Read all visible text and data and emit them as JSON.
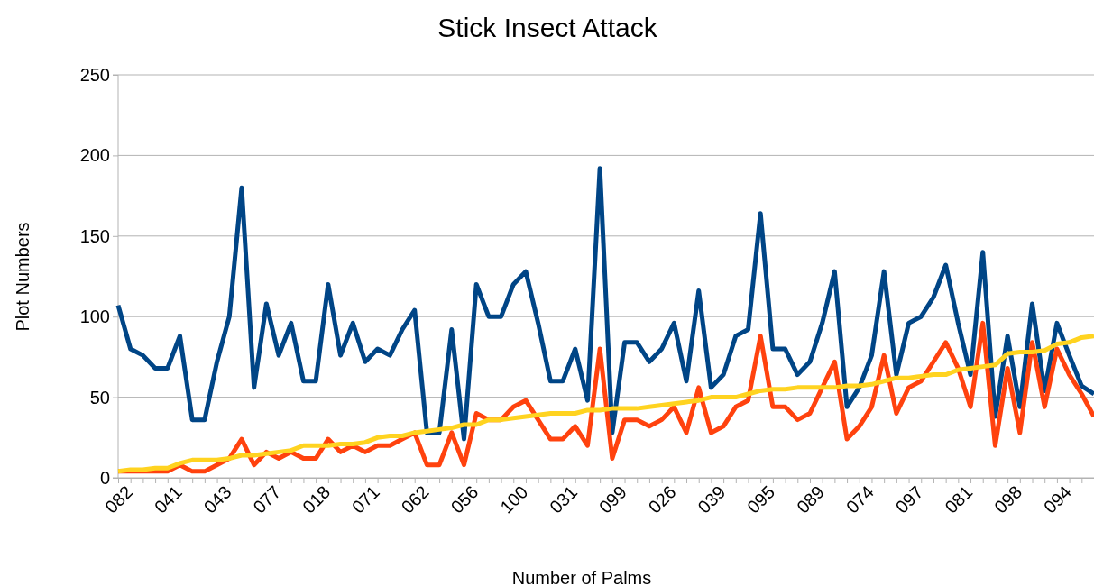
{
  "chart_data": {
    "type": "line",
    "title": "Stick Insect Attack",
    "xlabel": "Number of Palms",
    "ylabel": "Plot Numbers",
    "categories": [
      "082",
      null,
      null,
      null,
      "041",
      null,
      null,
      null,
      "043",
      null,
      null,
      null,
      "077",
      null,
      null,
      null,
      "018",
      null,
      null,
      null,
      "071",
      null,
      null,
      null,
      "062",
      null,
      null,
      null,
      "056",
      null,
      null,
      null,
      "100",
      null,
      null,
      null,
      "031",
      null,
      null,
      null,
      "099",
      null,
      null,
      null,
      "026",
      null,
      null,
      null,
      "039",
      null,
      null,
      null,
      "095",
      null,
      null,
      null,
      "089",
      null,
      null,
      null,
      "074",
      null,
      null,
      null,
      "097",
      null,
      null,
      null,
      "081",
      null,
      null,
      null,
      "098",
      null,
      null,
      null,
      "094",
      null,
      null,
      null
    ],
    "series": [
      {
        "color": "#004586",
        "values": [
          107,
          80,
          76,
          68,
          68,
          88,
          36,
          36,
          72,
          100,
          180,
          56,
          108,
          76,
          96,
          60,
          60,
          120,
          76,
          96,
          72,
          80,
          76,
          92,
          104,
          28,
          28,
          92,
          24,
          120,
          100,
          100,
          120,
          128,
          96,
          60,
          60,
          80,
          48,
          192,
          28,
          84,
          84,
          72,
          80,
          96,
          60,
          116,
          56,
          64,
          88,
          92,
          164,
          80,
          80,
          64,
          72,
          96,
          128,
          44,
          56,
          76,
          128,
          64,
          96,
          100,
          112,
          132,
          96,
          64,
          140,
          38,
          88,
          44,
          108,
          54,
          96,
          76,
          57,
          52
        ]
      },
      {
        "color": "#ff420e",
        "values": [
          4,
          4,
          4,
          4,
          4,
          8,
          4,
          4,
          8,
          12,
          24,
          8,
          16,
          12,
          16,
          12,
          12,
          24,
          16,
          20,
          16,
          20,
          20,
          24,
          28,
          8,
          8,
          28,
          8,
          40,
          36,
          36,
          44,
          48,
          36,
          24,
          24,
          32,
          20,
          80,
          12,
          36,
          36,
          32,
          36,
          44,
          28,
          56,
          28,
          32,
          44,
          48,
          88,
          44,
          44,
          36,
          40,
          56,
          72,
          24,
          32,
          44,
          76,
          40,
          56,
          60,
          72,
          84,
          68,
          44,
          96,
          20,
          68,
          28,
          84,
          44,
          80,
          64,
          52,
          38
        ]
      },
      {
        "color": "#ffd320",
        "values": [
          4,
          5,
          5,
          6,
          6,
          9,
          11,
          11,
          11,
          12,
          14,
          14,
          15,
          16,
          17,
          20,
          20,
          20,
          21,
          21,
          22,
          25,
          26,
          26,
          28,
          29,
          30,
          31,
          33,
          33,
          36,
          36,
          37,
          38,
          39,
          40,
          40,
          40,
          42,
          42,
          43,
          43,
          43,
          44,
          45,
          46,
          47,
          48,
          50,
          50,
          50,
          52,
          54,
          55,
          55,
          56,
          56,
          56,
          56,
          57,
          57,
          58,
          60,
          62,
          62,
          63,
          64,
          64,
          67,
          68,
          69,
          70,
          77,
          78,
          78,
          79,
          83,
          84,
          87,
          88
        ]
      }
    ],
    "ylim": [
      0,
      250
    ],
    "yticks": [
      0,
      50,
      100,
      150,
      200,
      250
    ],
    "grid": "y",
    "marker": "none",
    "line_style": "solid"
  }
}
